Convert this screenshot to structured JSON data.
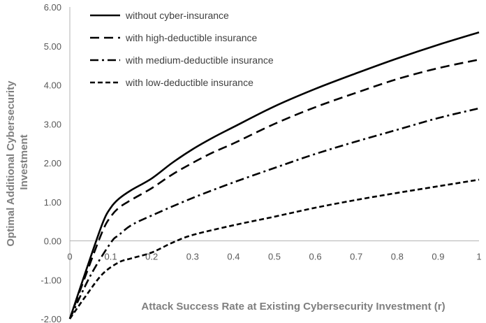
{
  "chart_data": {
    "type": "line",
    "title": "",
    "xlabel": "Attack Success Rate at Existing Cybersecurity Investment (r)",
    "ylabel": "Optimal Additional Cybersecurity Investment",
    "xlim": [
      0,
      1
    ],
    "ylim": [
      -2,
      6
    ],
    "x_ticks": [
      0,
      0.1,
      0.2,
      0.3,
      0.4,
      0.5,
      0.6,
      0.7,
      0.8,
      0.9,
      1
    ],
    "x_tick_labels": [
      "0",
      "0.1",
      "0.2",
      "0.3",
      "0.4",
      "0.5",
      "0.6",
      "0.7",
      "0.8",
      "0.9",
      "1"
    ],
    "y_ticks": [
      -2,
      -1,
      0,
      1,
      2,
      3,
      4,
      5,
      6
    ],
    "y_tick_labels": [
      "-2.00",
      "-1.00",
      "0.00",
      "1.00",
      "2.00",
      "3.00",
      "4.00",
      "5.00",
      "6.00"
    ],
    "grid": false,
    "legend_position": "top-left",
    "series": [
      {
        "name": "without cyber-insurance",
        "dash": "solid",
        "points": [
          [
            0,
            -2.0
          ],
          [
            0.04,
            -0.75
          ],
          [
            0.08,
            0.45
          ],
          [
            0.1,
            0.85
          ],
          [
            0.12,
            1.08
          ],
          [
            0.15,
            1.3
          ],
          [
            0.2,
            1.6
          ],
          [
            0.25,
            2.0
          ],
          [
            0.3,
            2.35
          ],
          [
            0.35,
            2.65
          ],
          [
            0.4,
            2.92
          ],
          [
            0.5,
            3.45
          ],
          [
            0.6,
            3.9
          ],
          [
            0.7,
            4.3
          ],
          [
            0.8,
            4.68
          ],
          [
            0.9,
            5.03
          ],
          [
            1.0,
            5.35
          ]
        ]
      },
      {
        "name": "with high-deductible insurance",
        "dash": "long-dash",
        "points": [
          [
            0,
            -2.0
          ],
          [
            0.04,
            -0.85
          ],
          [
            0.08,
            0.25
          ],
          [
            0.1,
            0.62
          ],
          [
            0.12,
            0.85
          ],
          [
            0.15,
            1.05
          ],
          [
            0.2,
            1.35
          ],
          [
            0.25,
            1.7
          ],
          [
            0.3,
            2.0
          ],
          [
            0.35,
            2.27
          ],
          [
            0.4,
            2.5
          ],
          [
            0.5,
            3.0
          ],
          [
            0.6,
            3.43
          ],
          [
            0.7,
            3.8
          ],
          [
            0.8,
            4.15
          ],
          [
            0.9,
            4.43
          ],
          [
            1.0,
            4.65
          ]
        ]
      },
      {
        "name": "with medium-deductible insurance",
        "dash": "dash-dot",
        "points": [
          [
            0,
            -2.0
          ],
          [
            0.05,
            -0.9
          ],
          [
            0.1,
            -0.05
          ],
          [
            0.12,
            0.15
          ],
          [
            0.15,
            0.4
          ],
          [
            0.2,
            0.65
          ],
          [
            0.3,
            1.1
          ],
          [
            0.4,
            1.5
          ],
          [
            0.5,
            1.87
          ],
          [
            0.6,
            2.23
          ],
          [
            0.7,
            2.55
          ],
          [
            0.8,
            2.85
          ],
          [
            0.9,
            3.15
          ],
          [
            1.0,
            3.4
          ]
        ]
      },
      {
        "name": "with low-deductible insurance",
        "dash": "short-dash",
        "points": [
          [
            0,
            -2.0
          ],
          [
            0.04,
            -1.4
          ],
          [
            0.08,
            -0.85
          ],
          [
            0.12,
            -0.55
          ],
          [
            0.15,
            -0.45
          ],
          [
            0.2,
            -0.3
          ],
          [
            0.25,
            -0.05
          ],
          [
            0.3,
            0.15
          ],
          [
            0.4,
            0.4
          ],
          [
            0.5,
            0.62
          ],
          [
            0.6,
            0.85
          ],
          [
            0.7,
            1.05
          ],
          [
            0.8,
            1.23
          ],
          [
            0.9,
            1.4
          ],
          [
            1.0,
            1.57
          ]
        ]
      }
    ]
  }
}
